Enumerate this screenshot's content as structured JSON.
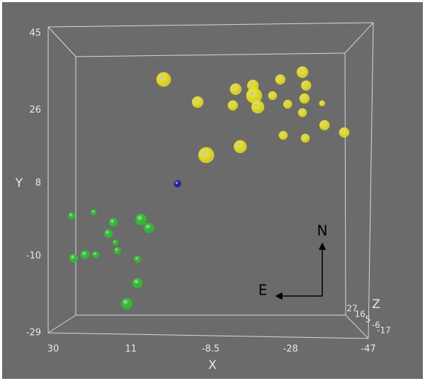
{
  "chart_data": {
    "type": "scatter3d",
    "xlabel": "X",
    "ylabel": "Y",
    "zlabel": "Z",
    "xlim": [
      30,
      -47
    ],
    "xticks": [
      30,
      11,
      -8.5,
      -28,
      -47
    ],
    "ylim": [
      -29,
      45
    ],
    "yticks": [
      45,
      26,
      8,
      -10,
      -29
    ],
    "zlim": [
      27,
      -17
    ],
    "zticks": [
      27,
      16,
      5,
      -6,
      -17
    ],
    "annotations": [
      "N",
      "E"
    ],
    "series": [
      {
        "color": "#e6e020",
        "x": [
          3.0,
          -5.3,
          -7.4,
          -15.7,
          -14.6,
          -13.9,
          -18.8,
          -19.1,
          -20.0,
          -23.6,
          -25.5,
          -27.3,
          -30.9,
          -31.8,
          -31.4,
          -30.9,
          -35.7,
          -36.3,
          -41.1,
          -26.2,
          -31.6
        ],
        "values": [
          33.6,
          28.0,
          14.9,
          17.0,
          31.2,
          27.2,
          32.1,
          29.6,
          26.8,
          29.6,
          33.6,
          27.5,
          35.4,
          32.1,
          28.9,
          25.4,
          27.7,
          22.3,
          20.5,
          19.8,
          19.1
        ],
        "z": [
          -11,
          2,
          -17,
          -4,
          2,
          8,
          2,
          -17,
          -4,
          14,
          8,
          14,
          2,
          8,
          8,
          14,
          27,
          8,
          8,
          14,
          14
        ]
      },
      {
        "color": "#2ec02e",
        "x": [
          25.5,
          20.1,
          15.3,
          16.5,
          14.8,
          14.3,
          8.5,
          6.6,
          25.0,
          22.2,
          19.6,
          9.4,
          9.4,
          12.0
        ],
        "values": [
          -0.1,
          0.8,
          -1.7,
          -4.5,
          -6.7,
          -8.7,
          -1.0,
          -3.1,
          -10.6,
          -9.7,
          -9.7,
          -10.8,
          -16.7,
          -21.8
        ],
        "z": [
          21,
          27,
          14,
          14,
          27,
          21,
          2,
          8,
          14,
          14,
          21,
          21,
          8,
          2
        ]
      },
      {
        "color": "#1c1ca8",
        "x": [
          -0.4
        ],
        "values": [
          7.8
        ],
        "z": [
          21
        ]
      }
    ]
  }
}
